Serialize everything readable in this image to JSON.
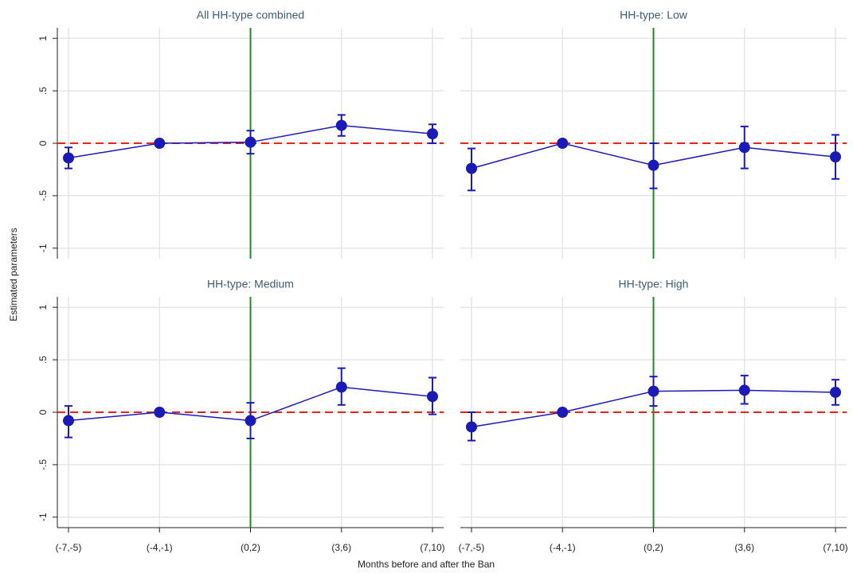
{
  "chart_data": [
    {
      "type": "line",
      "title": "All HH-type combined",
      "categories": [
        "(-7,-5)",
        "(-4,-1)",
        "(0,2)",
        "(3,6)",
        "(7,10)"
      ],
      "series": [
        {
          "color": "#1a1ab8",
          "values": [
            -0.14,
            0,
            0.01,
            0.17,
            0.09
          ],
          "ci_low": [
            -0.24,
            null,
            -0.1,
            0.07,
            0.0
          ],
          "ci_high": [
            -0.04,
            null,
            0.12,
            0.27,
            0.18
          ]
        }
      ],
      "ylim": [
        -1.1,
        1.1
      ],
      "yticks": [
        -1,
        {
          "value": -0.5,
          "label": "-.5"
        },
        0,
        {
          "value": 0.5,
          "label": ".5"
        },
        1
      ],
      "hline": {
        "value": 0,
        "color": "#e8231c"
      },
      "vline": {
        "category": "(0,2)",
        "color": "#1f8a1f"
      },
      "grid": true
    },
    {
      "type": "line",
      "title": "HH-type: Low",
      "categories": [
        "(-7,-5)",
        "(-4,-1)",
        "(0,2)",
        "(3,6)",
        "(7,10)"
      ],
      "series": [
        {
          "color": "#1a1ab8",
          "values": [
            -0.24,
            0,
            -0.21,
            -0.04,
            -0.13
          ],
          "ci_low": [
            -0.45,
            null,
            -0.43,
            -0.24,
            -0.34
          ],
          "ci_high": [
            -0.05,
            null,
            0.0,
            0.16,
            0.08
          ]
        }
      ],
      "ylim": [
        -1.1,
        1.1
      ],
      "yticks": [
        -1,
        {
          "value": -0.5,
          "label": "-.5"
        },
        0,
        {
          "value": 0.5,
          "label": ".5"
        },
        1
      ],
      "hline": {
        "value": 0,
        "color": "#e8231c"
      },
      "vline": {
        "category": "(0,2)",
        "color": "#1f8a1f"
      },
      "grid": true
    },
    {
      "type": "line",
      "title": "HH-type: Medium",
      "categories": [
        "(-7,-5)",
        "(-4,-1)",
        "(0,2)",
        "(3,6)",
        "(7,10)"
      ],
      "series": [
        {
          "color": "#1a1ab8",
          "values": [
            -0.08,
            0,
            -0.08,
            0.24,
            0.15
          ],
          "ci_low": [
            -0.24,
            null,
            -0.25,
            0.07,
            -0.02
          ],
          "ci_high": [
            0.06,
            null,
            0.09,
            0.42,
            0.33
          ]
        }
      ],
      "ylim": [
        -1.1,
        1.1
      ],
      "yticks": [
        -1,
        {
          "value": -0.5,
          "label": "-.5"
        },
        0,
        {
          "value": 0.5,
          "label": ".5"
        },
        1
      ],
      "hline": {
        "value": 0,
        "color": "#e8231c"
      },
      "vline": {
        "category": "(0,2)",
        "color": "#1f8a1f"
      },
      "grid": true
    },
    {
      "type": "line",
      "title": "HH-type: High",
      "categories": [
        "(-7,-5)",
        "(-4,-1)",
        "(0,2)",
        "(3,6)",
        "(7,10)"
      ],
      "series": [
        {
          "color": "#1a1ab8",
          "values": [
            -0.14,
            0,
            0.2,
            0.21,
            0.19
          ],
          "ci_low": [
            -0.27,
            null,
            0.06,
            0.08,
            0.07
          ],
          "ci_high": [
            0.0,
            null,
            0.34,
            0.35,
            0.31
          ]
        }
      ],
      "ylim": [
        -1.1,
        1.1
      ],
      "yticks": [
        -1,
        {
          "value": -0.5,
          "label": "-.5"
        },
        0,
        {
          "value": 0.5,
          "label": ".5"
        },
        1
      ],
      "hline": {
        "value": 0,
        "color": "#e8231c"
      },
      "vline": {
        "category": "(0,2)",
        "color": "#1f8a1f"
      },
      "grid": true
    }
  ],
  "ylabel": "Estimated parameters",
  "xlabel": "Months before and after the Ban"
}
